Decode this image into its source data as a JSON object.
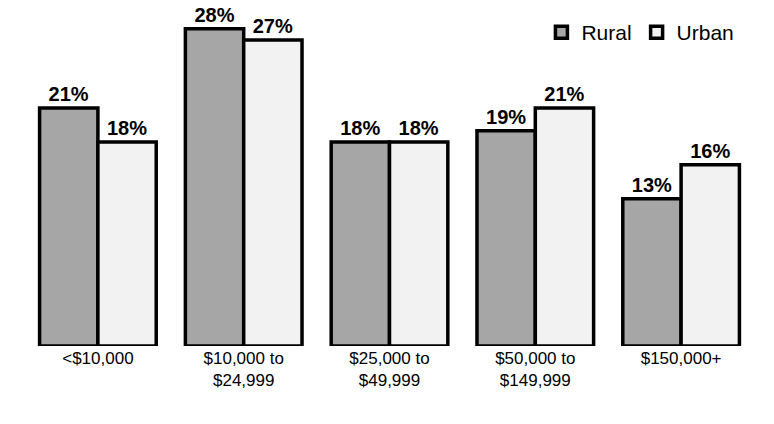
{
  "chart_data": {
    "type": "bar",
    "categories": [
      "<$10,000",
      "$10,000 to\n$24,999",
      "$25,000 to\n$49,999",
      "$50,000 to\n$149,999",
      "$150,000+"
    ],
    "series": [
      {
        "name": "Rural",
        "color": "#a6a6a6",
        "values": [
          21,
          28,
          18,
          19,
          13
        ],
        "value_labels": [
          "21%",
          "28%",
          "18%",
          "19%",
          "13%"
        ]
      },
      {
        "name": "Urban",
        "color": "#f2f2f2",
        "values": [
          18,
          27,
          18,
          21,
          16
        ],
        "value_labels": [
          "18%",
          "27%",
          "18%",
          "21%",
          "16%"
        ]
      }
    ],
    "data_labels": true,
    "tick_labels": "x",
    "grid": false,
    "legend": "upper right"
  }
}
